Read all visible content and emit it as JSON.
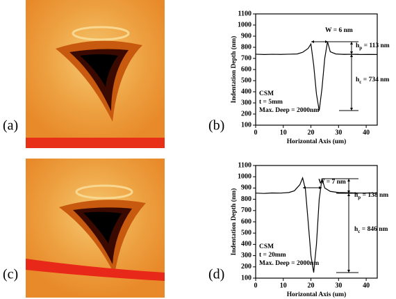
{
  "panel_labels": [
    "(a)",
    "(b)",
    "(c)",
    "(d)"
  ],
  "chart_data": [
    {
      "type": "line",
      "x_label": "Horizontal Axis (um)",
      "y_label": "Indentation Depth (nm)",
      "xlim": [
        0,
        44
      ],
      "ylim": [
        100,
        1100
      ],
      "xticks": [
        0,
        10,
        20,
        30,
        40
      ],
      "yticks": [
        100,
        200,
        300,
        400,
        500,
        600,
        700,
        800,
        900,
        1000,
        1100
      ],
      "series": [
        {
          "color": "#000000",
          "x": [
            0,
            3,
            6,
            9,
            12,
            15,
            17,
            19,
            20,
            21,
            22,
            23,
            24,
            25,
            26,
            27,
            29,
            32,
            35,
            38,
            41,
            44
          ],
          "values": [
            738,
            735,
            737,
            736,
            738,
            740,
            755,
            790,
            830,
            640,
            380,
            230,
            430,
            700,
            850,
            760,
            740,
            736,
            737,
            735,
            736,
            735
          ]
        }
      ],
      "annotations": [
        {
          "text": "W = 6 nm"
        },
        {
          "base": "h",
          "sub": "p",
          "rest": " = 113 nm"
        },
        {
          "base": "h",
          "sub": "c",
          "rest": " = 734 nm"
        },
        {
          "text": "CSM"
        },
        {
          "text": "t = 5mm"
        },
        {
          "text": "Max. Deep = 2000nm"
        }
      ]
    },
    {
      "type": "line",
      "x_label": "Horizontal Axis (um)",
      "y_label": "Indentation Depth (nm)",
      "xlim": [
        0,
        44
      ],
      "ylim": [
        100,
        1100
      ],
      "xticks": [
        0,
        10,
        20,
        30,
        40
      ],
      "yticks": [
        100,
        200,
        300,
        400,
        500,
        600,
        700,
        800,
        900,
        1000,
        1100
      ],
      "series": [
        {
          "color": "#000000",
          "x": [
            0,
            3,
            6,
            9,
            12,
            14,
            16,
            17,
            18,
            19,
            20,
            21,
            22,
            23,
            24,
            25,
            27,
            30,
            34,
            38,
            41,
            44
          ],
          "values": [
            855,
            852,
            856,
            855,
            860,
            875,
            930,
            990,
            890,
            600,
            300,
            150,
            400,
            800,
            985,
            900,
            870,
            860,
            858,
            855,
            856,
            855
          ]
        }
      ],
      "annotations": [
        {
          "text": "W = 7 nm"
        },
        {
          "base": "h",
          "sub": "p",
          "rest": " = 138 nm"
        },
        {
          "base": "h",
          "sub": "c",
          "rest": " = 846 nm"
        },
        {
          "text": "CSM"
        },
        {
          "text": "t = 20mm"
        },
        {
          "text": "Max. Deep = 2000nm"
        }
      ]
    }
  ]
}
